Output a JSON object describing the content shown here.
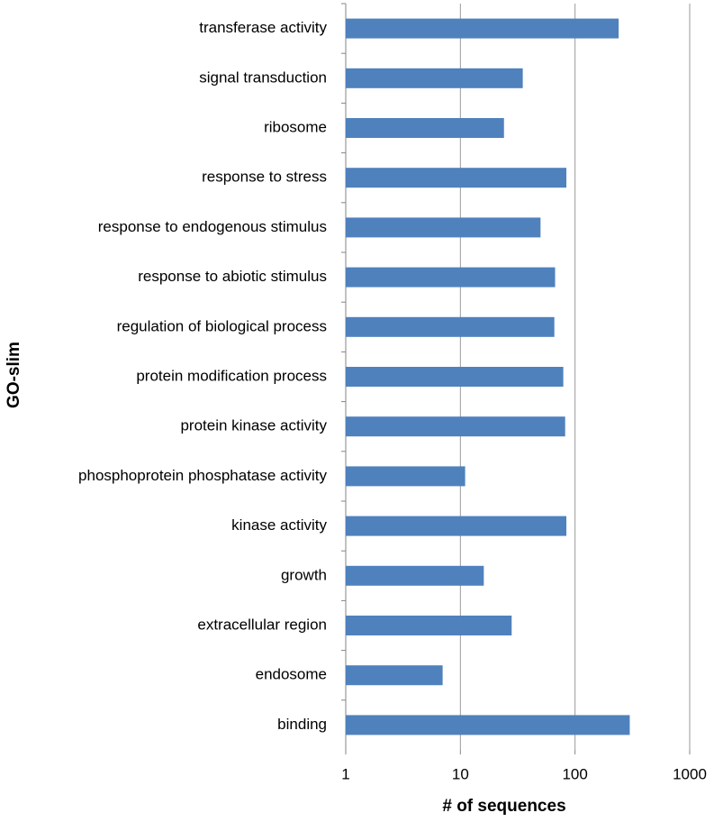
{
  "chart_data": {
    "type": "bar",
    "orientation": "horizontal",
    "xlabel": "# of sequences",
    "ylabel": "GO-slim",
    "categories": [
      "transferase activity",
      "signal transduction",
      "ribosome",
      "response to stress",
      "response to endogenous stimulus",
      "response to abiotic stimulus",
      "regulation of biological process",
      "protein modification process",
      "protein kinase activity",
      "phosphoprotein phosphatase activity",
      "kinase activity",
      "growth",
      "extracellular region",
      "endosome",
      "binding"
    ],
    "values": [
      240,
      35,
      24,
      84,
      50,
      67,
      66,
      79,
      82,
      11,
      84,
      16,
      28,
      7,
      300
    ],
    "color": "#4f81bd",
    "xlim": [
      1,
      1000
    ],
    "xticks": [
      1,
      10,
      100,
      1000
    ],
    "xscale": "log",
    "grid": true
  }
}
